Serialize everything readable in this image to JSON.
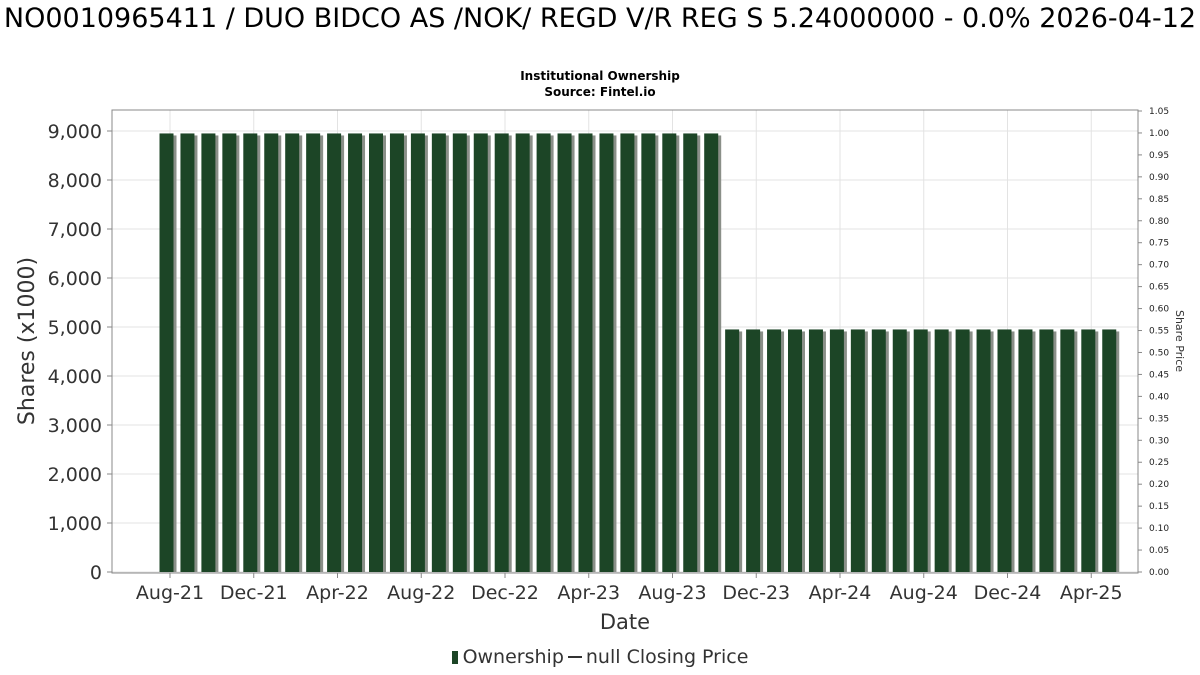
{
  "title": "NO0010965411 / DUO BIDCO AS /NOK/ REGD V/R REG S 5.24000000 - 0.0% 2026-04-12",
  "subtitle_line1": "Institutional Ownership",
  "subtitle_line2": "Source: Fintel.io",
  "legend": {
    "ownership": "Ownership",
    "closing_price": "null Closing Price"
  },
  "colors": {
    "bar": "#1c4526",
    "bar_shadow": "#8a8f88",
    "grid": "#e3e3e3",
    "axis": "#888888"
  },
  "chart_data": {
    "type": "bar",
    "xlabel": "Date",
    "ylabel": "Shares (x1000)",
    "y2label": "Share Price",
    "ylim": [
      0,
      9300
    ],
    "y2lim": [
      0,
      1.05
    ],
    "yticks": [
      0,
      1000,
      2000,
      3000,
      4000,
      5000,
      6000,
      7000,
      8000,
      9000
    ],
    "ytick_labels": [
      "0",
      "1,000",
      "2,000",
      "3,000",
      "4,000",
      "5,000",
      "6,000",
      "7,000",
      "8,000",
      "9,000"
    ],
    "y2ticks": [
      "0.00",
      "0.05",
      "0.10",
      "0.15",
      "0.20",
      "0.25",
      "0.30",
      "0.35",
      "0.40",
      "0.45",
      "0.50",
      "0.55",
      "0.60",
      "0.65",
      "0.70",
      "0.75",
      "0.80",
      "0.85",
      "0.90",
      "0.95",
      "1.00",
      "1.05"
    ],
    "xtick_labels": [
      "Aug-21",
      "Dec-21",
      "Apr-22",
      "Aug-22",
      "Dec-22",
      "Apr-23",
      "Aug-23",
      "Dec-23",
      "Apr-24",
      "Aug-24",
      "Dec-24",
      "Apr-25"
    ],
    "grid": true,
    "legend_position": "bottom",
    "series": [
      {
        "name": "Ownership",
        "values": [
          8950,
          8950,
          8950,
          8950,
          8950,
          8950,
          8950,
          8950,
          8950,
          8950,
          8950,
          8950,
          8950,
          8950,
          8950,
          8950,
          8950,
          8950,
          8950,
          8950,
          8950,
          8950,
          8950,
          8950,
          8950,
          8950,
          8950,
          4950,
          4950,
          4950,
          4950,
          4950,
          4950,
          4950,
          4950,
          4950,
          4950,
          4950,
          4950,
          4950,
          4950,
          4950,
          4950,
          4950,
          4950,
          4950
        ]
      }
    ]
  }
}
